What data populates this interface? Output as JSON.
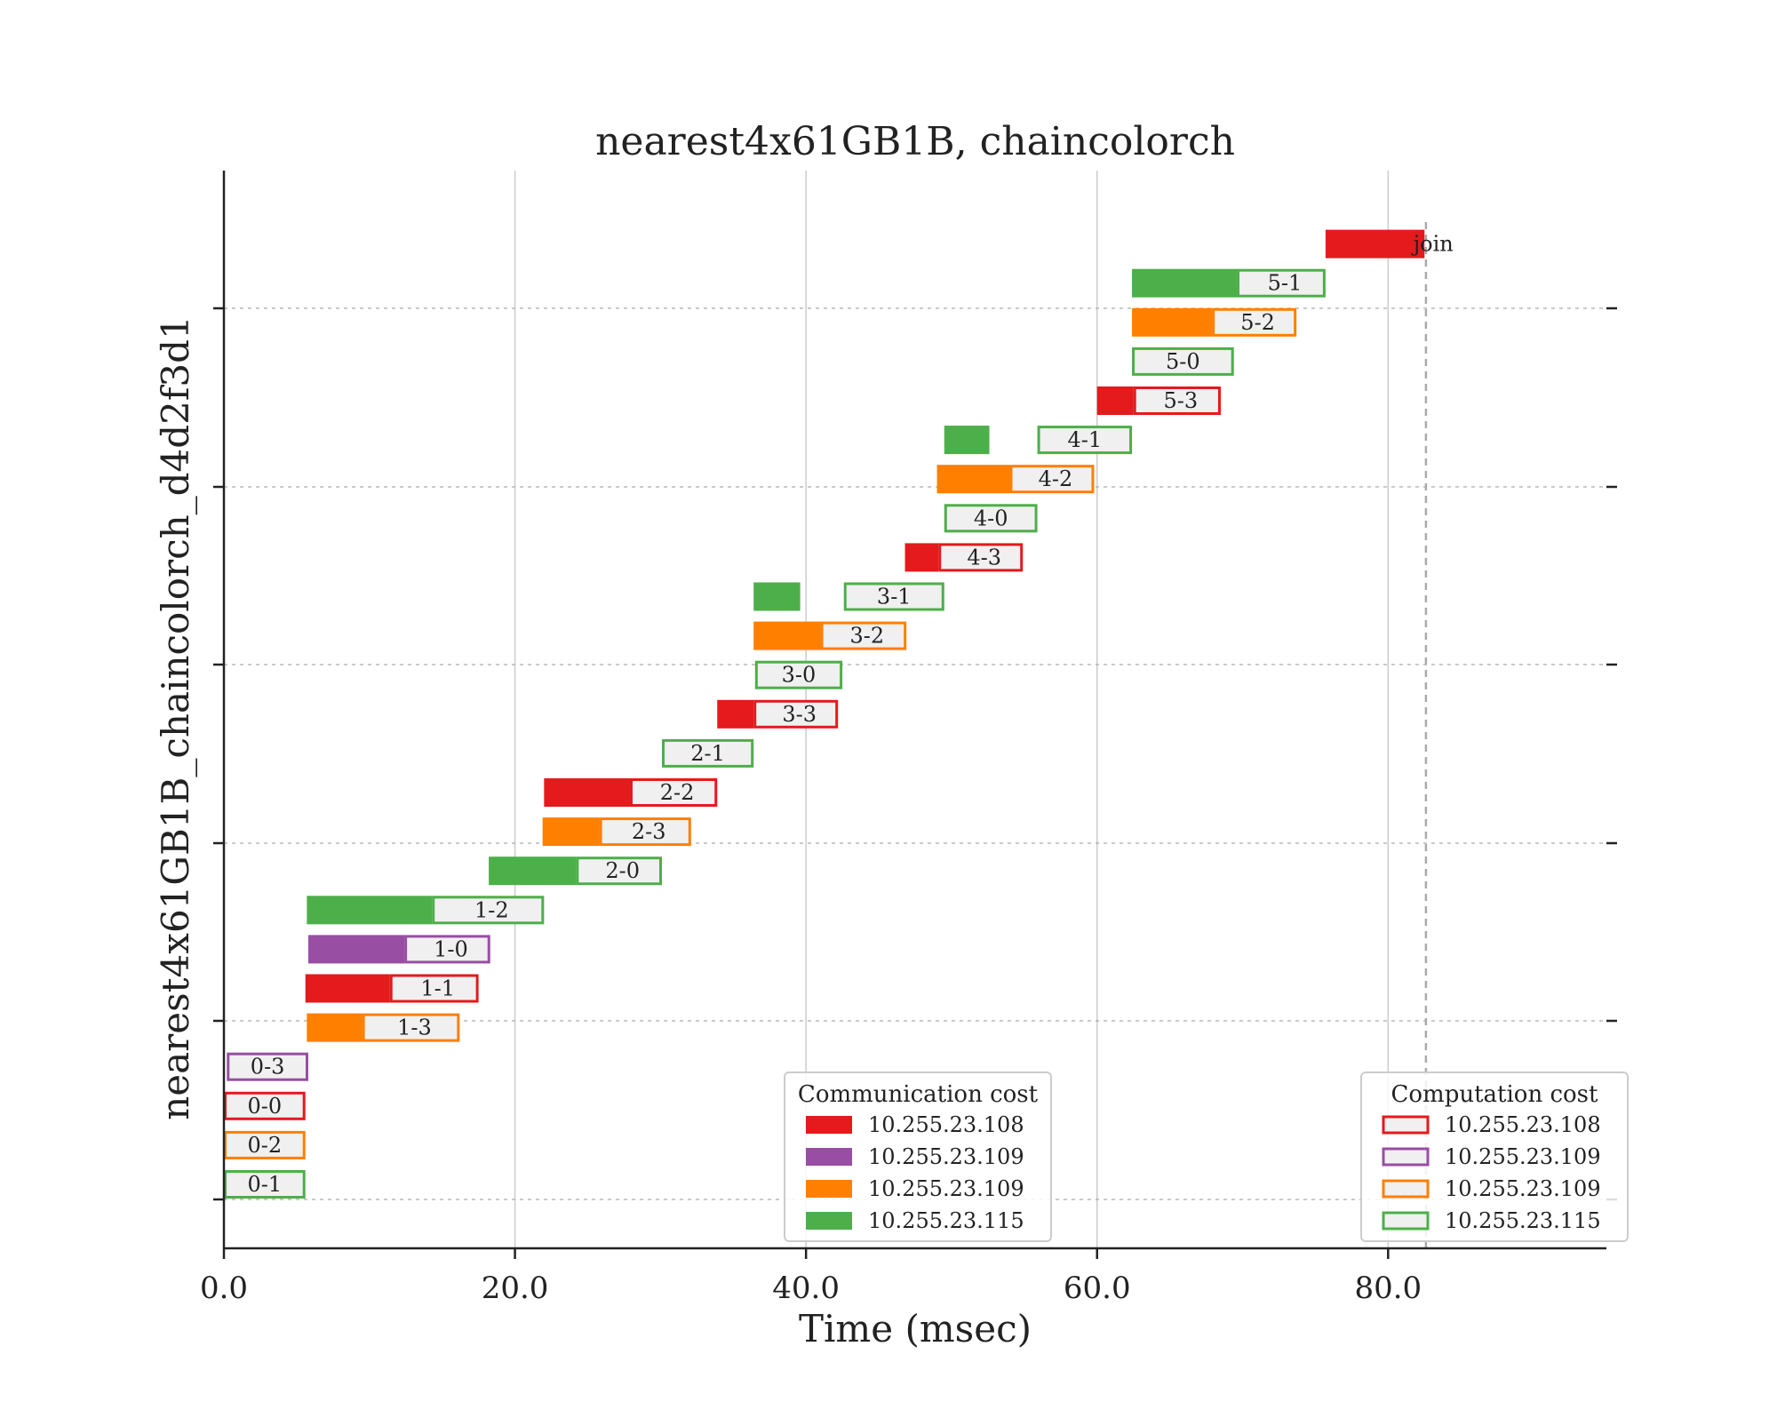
{
  "chart_data": {
    "type": "gantt",
    "title": "nearest4x61GB1B, chaincolorch",
    "xlabel": "Time (msec)",
    "ylabel": "nearest4x61GB1B_chaincolorch_d4d2f3d1",
    "xlim": [
      0,
      95
    ],
    "xticks": [
      0,
      20,
      40,
      60,
      80
    ],
    "xtick_labels": [
      "0.0",
      "20.0",
      "40.0",
      "60.0",
      "80.0"
    ],
    "vertical_gridlines": [
      20,
      40,
      60,
      80
    ],
    "join_marker_x": 82.6,
    "colors": {
      "10.255.23.108": "#e41a1c",
      "10.255.23.109 (purple)": "#984ea3",
      "10.255.23.109 (orange)": "#ff7f00",
      "10.255.23.115": "#4daf4a",
      "computation_fill": "#f0f0f0"
    },
    "legend_communication": {
      "title": "Communication cost",
      "placement": "lower-center",
      "entries": [
        {
          "label": "10.255.23.108",
          "color": "#e41a1c"
        },
        {
          "label": "10.255.23.109",
          "color": "#984ea3"
        },
        {
          "label": "10.255.23.109",
          "color": "#ff7f00"
        },
        {
          "label": "10.255.23.115",
          "color": "#4daf4a"
        }
      ]
    },
    "legend_computation": {
      "title": "Computation cost",
      "placement": "lower-right",
      "entries": [
        {
          "label": "10.255.23.108",
          "color": "#e41a1c"
        },
        {
          "label": "10.255.23.109",
          "color": "#984ea3"
        },
        {
          "label": "10.255.23.109",
          "color": "#ff7f00"
        },
        {
          "label": "10.255.23.115",
          "color": "#4daf4a"
        }
      ]
    },
    "tasks": [
      {
        "label": "0-1",
        "color": "#4daf4a",
        "comm_start": 0.0,
        "comm_end": 0.0,
        "comp_start": 0.0,
        "comp_end": 5.6
      },
      {
        "label": "0-2",
        "color": "#ff7f00",
        "comm_start": 0.0,
        "comm_end": 0.0,
        "comp_start": 0.0,
        "comp_end": 5.6
      },
      {
        "label": "0-0",
        "color": "#e41a1c",
        "comm_start": 0.0,
        "comm_end": 0.0,
        "comp_start": 0.0,
        "comp_end": 5.6
      },
      {
        "label": "0-3",
        "color": "#984ea3",
        "comm_start": 0.0,
        "comm_end": 0.0,
        "comp_start": 0.2,
        "comp_end": 5.8
      },
      {
        "label": "1-3",
        "color": "#ff7f00",
        "comm_start": 5.7,
        "comm_end": 9.5,
        "comp_start": 9.5,
        "comp_end": 16.2
      },
      {
        "label": "1-1",
        "color": "#e41a1c",
        "comm_start": 5.6,
        "comm_end": 11.4,
        "comp_start": 11.4,
        "comp_end": 17.5
      },
      {
        "label": "1-0",
        "color": "#984ea3",
        "comm_start": 5.8,
        "comm_end": 12.4,
        "comp_start": 12.4,
        "comp_end": 18.3
      },
      {
        "label": "1-2",
        "color": "#4daf4a",
        "comm_start": 5.7,
        "comm_end": 14.3,
        "comp_start": 14.3,
        "comp_end": 22.0
      },
      {
        "label": "2-0",
        "color": "#4daf4a",
        "comm_start": 18.2,
        "comm_end": 24.2,
        "comp_start": 24.2,
        "comp_end": 30.1
      },
      {
        "label": "2-3",
        "color": "#ff7f00",
        "comm_start": 21.9,
        "comm_end": 25.8,
        "comp_start": 25.8,
        "comp_end": 32.1
      },
      {
        "label": "2-2",
        "color": "#e41a1c",
        "comm_start": 22.0,
        "comm_end": 27.9,
        "comp_start": 27.9,
        "comp_end": 33.9
      },
      {
        "label": "2-1",
        "color": "#4daf4a",
        "comm_start": 30.1,
        "comm_end": 30.1,
        "comp_start": 30.1,
        "comp_end": 36.4
      },
      {
        "label": "3-3",
        "color": "#e41a1c",
        "comm_start": 33.9,
        "comm_end": 36.4,
        "comp_start": 36.4,
        "comp_end": 42.2
      },
      {
        "label": "3-0",
        "color": "#4daf4a",
        "comm_start": 36.5,
        "comm_end": 36.5,
        "comp_start": 36.5,
        "comp_end": 42.5
      },
      {
        "label": "3-2",
        "color": "#ff7f00",
        "comm_start": 36.4,
        "comm_end": 41.0,
        "comp_start": 41.0,
        "comp_end": 46.9
      },
      {
        "label": "3-1",
        "color": "#4daf4a",
        "comm_start": 36.4,
        "comm_end": 39.6,
        "comp_start": 42.6,
        "comp_end": 49.5
      },
      {
        "label": "4-3",
        "color": "#e41a1c",
        "comm_start": 46.8,
        "comm_end": 49.1,
        "comp_start": 49.1,
        "comp_end": 54.9
      },
      {
        "label": "4-0",
        "color": "#4daf4a",
        "comm_start": 49.5,
        "comm_end": 49.5,
        "comp_start": 49.5,
        "comp_end": 55.9
      },
      {
        "label": "4-2",
        "color": "#ff7f00",
        "comm_start": 49.0,
        "comm_end": 54.0,
        "comp_start": 54.0,
        "comp_end": 59.8
      },
      {
        "label": "4-1",
        "color": "#4daf4a",
        "comm_start": 49.5,
        "comm_end": 52.6,
        "comp_start": 55.9,
        "comp_end": 62.4
      },
      {
        "label": "5-3",
        "color": "#e41a1c",
        "comm_start": 60.0,
        "comm_end": 62.5,
        "comp_start": 62.5,
        "comp_end": 68.5
      },
      {
        "label": "5-0",
        "color": "#4daf4a",
        "comm_start": 62.4,
        "comm_end": 62.4,
        "comp_start": 62.4,
        "comp_end": 69.4
      },
      {
        "label": "5-2",
        "color": "#ff7f00",
        "comm_start": 62.4,
        "comm_end": 67.9,
        "comp_start": 67.9,
        "comp_end": 73.7
      },
      {
        "label": "5-1",
        "color": "#4daf4a",
        "comm_start": 62.4,
        "comm_end": 69.6,
        "comp_start": 69.6,
        "comp_end": 75.7
      },
      {
        "label": "join",
        "color": "#e41a1c",
        "comm_start": 75.7,
        "comm_end": 82.5,
        "comp_start": 82.5,
        "comp_end": 82.5
      }
    ]
  }
}
